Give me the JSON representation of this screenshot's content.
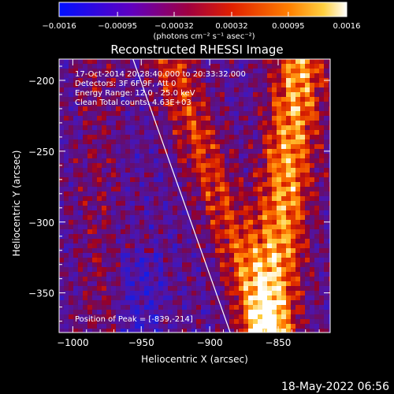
{
  "chart_data": {
    "type": "heatmap",
    "title": "Reconstructed RHESSI Image",
    "xlabel": "Heliocentric X (arcsec)",
    "ylabel": "Heliocentric Y (arcsec)",
    "xlim": [
      -1010,
      -812
    ],
    "ylim": [
      -378,
      -185
    ],
    "x_ticks": [
      -1000,
      -950,
      -900,
      -850
    ],
    "x_tick_labels": [
      "−1000",
      "−950",
      "−900",
      "−850"
    ],
    "y_ticks": [
      -200,
      -250,
      -300,
      -350
    ],
    "y_tick_labels": [
      "−200",
      "−250",
      "−300",
      "−350"
    ],
    "colorbar": {
      "min": -0.0016,
      "max": 0.0016,
      "tick_values": [
        -0.0016,
        -0.00095,
        -0.00032,
        0.00032,
        0.00095,
        0.0016
      ],
      "tick_labels": [
        "−0.0016",
        "−0.00095",
        "−0.00032",
        "0.00032",
        "0.00095",
        "0.0016"
      ],
      "label": "(photons cm⁻² s⁻¹ asec⁻²)",
      "colors": [
        "#0000ff",
        "#6a00c8",
        "#b00020",
        "#ff4000",
        "#ffb000",
        "#ffffff"
      ]
    },
    "annotations": {
      "time_range": "17-Oct-2014 20:28:40.000 to 20:33:32.000",
      "detectors": "Detectors: 3F 6F 9F, Att 0",
      "energy_range": "Energy Range: 12.0 - 25.0 keV",
      "method_counts": "Clean     Total counts: 4.63E+03",
      "peak": "Position of Peak = [-839,-214]"
    },
    "limb_line": {
      "from": [
        -956,
        -185
      ],
      "to": [
        -885,
        -378
      ]
    },
    "grid": false
  },
  "footer": {
    "timestamp": "18-May-2022 06:56"
  }
}
